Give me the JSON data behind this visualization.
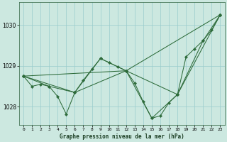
{
  "background_color": "#cce8e0",
  "grid_color": "#99cccc",
  "line_color": "#2d6b3a",
  "title": "Graphe pression niveau de la mer (hPa)",
  "xlim": [
    -0.5,
    23.5
  ],
  "ylim": [
    1027.55,
    1030.55
  ],
  "yticks": [
    1028,
    1029,
    1030
  ],
  "xticks": [
    0,
    1,
    2,
    3,
    4,
    5,
    6,
    7,
    8,
    9,
    10,
    11,
    12,
    13,
    14,
    15,
    16,
    17,
    18,
    19,
    20,
    21,
    22,
    23
  ],
  "series": [
    {
      "x": [
        0,
        1,
        2,
        3,
        4,
        5,
        6,
        7,
        8,
        9,
        10,
        11,
        12,
        13,
        14,
        15,
        16,
        17,
        18,
        19,
        20,
        21,
        22,
        23
      ],
      "y": [
        1028.75,
        1028.5,
        1028.55,
        1028.5,
        1028.25,
        1027.82,
        1028.35,
        1028.65,
        1028.92,
        1029.18,
        1029.08,
        1028.98,
        1028.88,
        1028.58,
        1028.12,
        1027.72,
        1027.78,
        1028.1,
        1028.3,
        1029.22,
        1029.42,
        1029.62,
        1029.88,
        1030.25
      ]
    },
    {
      "x": [
        0,
        3,
        6,
        9,
        12,
        15,
        18,
        21,
        23
      ],
      "y": [
        1028.75,
        1028.5,
        1028.35,
        1029.18,
        1028.88,
        1027.72,
        1028.3,
        1029.62,
        1030.25
      ]
    },
    {
      "x": [
        0,
        6,
        12,
        18,
        23
      ],
      "y": [
        1028.75,
        1028.35,
        1028.88,
        1028.3,
        1030.25
      ]
    },
    {
      "x": [
        0,
        12,
        23
      ],
      "y": [
        1028.75,
        1028.88,
        1030.25
      ]
    }
  ]
}
